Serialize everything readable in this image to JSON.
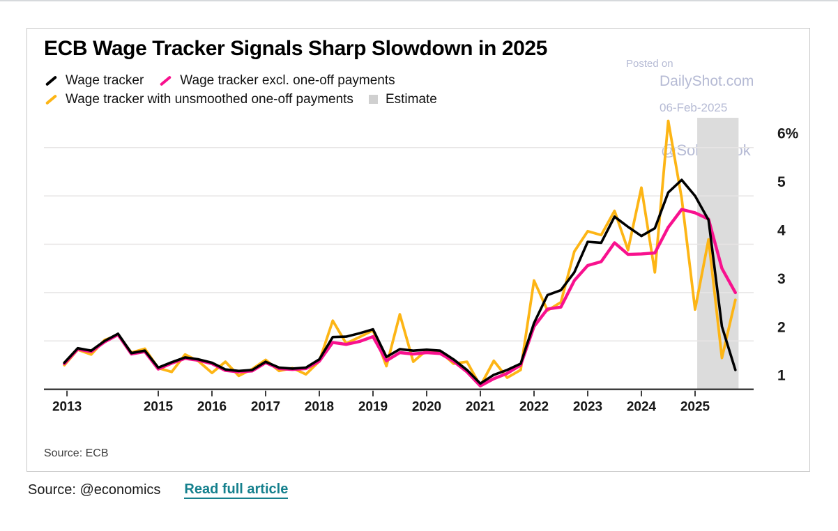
{
  "card": {
    "title": "ECB Wage Tracker Signals Sharp Slowdown in 2025",
    "source_note": "Source: ECB",
    "watermark": {
      "line1": "Posted on",
      "line2": "DailyShot.com",
      "line3": "06-Feb-2025",
      "line4": "@SoberLook"
    }
  },
  "legend": {
    "items": [
      {
        "label": "Wage tracker",
        "color": "#000000",
        "marker": "slash"
      },
      {
        "label": "Wage tracker excl. one-off payments",
        "color": "#f8118e",
        "marker": "slash"
      },
      {
        "label": "Wage tracker with unsmoothed one-off payments",
        "color": "#fdb515",
        "marker": "slash"
      },
      {
        "label": "Estimate",
        "color": "#d0d0d0",
        "marker": "square"
      }
    ]
  },
  "footer": {
    "source_label": "Source: @economics",
    "link_label": "Read full article"
  },
  "chart_data": {
    "type": "line",
    "title": "ECB Wage Tracker Signals Sharp Slowdown in 2025",
    "unit": "percent",
    "ylim": [
      1,
      6.6
    ],
    "grid": true,
    "legend_position": "top-left",
    "x": [
      2013.25,
      2013.5,
      2013.75,
      2014.0,
      2014.25,
      2014.5,
      2014.75,
      2015.0,
      2015.25,
      2015.5,
      2015.75,
      2016.0,
      2016.25,
      2016.5,
      2016.75,
      2017.0,
      2017.25,
      2017.5,
      2017.75,
      2018.0,
      2018.25,
      2018.5,
      2018.75,
      2019.0,
      2019.25,
      2019.5,
      2019.75,
      2020.0,
      2020.25,
      2020.5,
      2020.75,
      2021.0,
      2021.25,
      2021.5,
      2021.75,
      2022.0,
      2022.25,
      2022.5,
      2022.75,
      2023.0,
      2023.25,
      2023.5,
      2023.75,
      2024.0,
      2024.25,
      2024.5,
      2024.75,
      2025.0,
      2025.25,
      2025.5,
      2025.75
    ],
    "series": [
      {
        "name": "Wage tracker",
        "color": "#000000",
        "width": 3.6,
        "z": 3,
        "values": [
          1.55,
          1.85,
          1.8,
          2.0,
          2.15,
          1.75,
          1.8,
          1.45,
          1.56,
          1.66,
          1.62,
          1.55,
          1.41,
          1.38,
          1.4,
          1.57,
          1.45,
          1.43,
          1.45,
          1.62,
          2.08,
          2.09,
          2.16,
          2.24,
          1.67,
          1.83,
          1.8,
          1.82,
          1.8,
          1.62,
          1.4,
          1.12,
          1.3,
          1.4,
          1.53,
          2.37,
          2.95,
          3.05,
          3.42,
          4.05,
          4.03,
          4.57,
          4.36,
          4.17,
          4.33,
          5.07,
          5.33,
          5.0,
          4.5,
          2.3,
          1.4
        ]
      },
      {
        "name": "Wage tracker excl. one-off payments",
        "color": "#f8118e",
        "width": 4.4,
        "z": 2,
        "values": [
          1.53,
          1.83,
          1.78,
          1.98,
          2.13,
          1.73,
          1.78,
          1.42,
          1.54,
          1.64,
          1.6,
          1.53,
          1.39,
          1.36,
          1.38,
          1.55,
          1.43,
          1.41,
          1.43,
          1.58,
          1.97,
          1.93,
          1.99,
          2.09,
          1.59,
          1.76,
          1.73,
          1.76,
          1.74,
          1.58,
          1.36,
          1.07,
          1.22,
          1.33,
          1.5,
          2.3,
          2.66,
          2.7,
          3.25,
          3.56,
          3.64,
          4.03,
          3.79,
          3.8,
          3.82,
          4.35,
          4.72,
          4.65,
          4.52,
          3.5,
          3.0
        ]
      },
      {
        "name": "Wage tracker with unsmoothed one-off payments",
        "color": "#fdb515",
        "width": 3.8,
        "z": 1,
        "values": [
          1.5,
          1.82,
          1.72,
          2.02,
          2.12,
          1.76,
          1.84,
          1.44,
          1.36,
          1.72,
          1.58,
          1.34,
          1.57,
          1.28,
          1.42,
          1.61,
          1.38,
          1.44,
          1.31,
          1.58,
          2.42,
          1.95,
          2.08,
          2.22,
          1.48,
          2.55,
          1.57,
          1.81,
          1.78,
          1.53,
          1.57,
          1.07,
          1.59,
          1.24,
          1.4,
          3.25,
          2.63,
          2.8,
          3.85,
          4.27,
          4.19,
          4.69,
          3.88,
          5.17,
          3.42,
          6.55,
          4.95,
          2.65,
          4.1,
          1.65,
          2.85
        ]
      }
    ],
    "yticks": [
      {
        "v": 6,
        "label": "6%"
      },
      {
        "v": 5,
        "label": "5"
      },
      {
        "v": 4,
        "label": "4"
      },
      {
        "v": 3,
        "label": "3"
      },
      {
        "v": 2,
        "label": "2"
      },
      {
        "v": 1,
        "label": "1"
      }
    ],
    "xticks": [
      {
        "t": 2013.3,
        "label": "2013"
      },
      {
        "t": 2015,
        "label": "2015"
      },
      {
        "t": 2016,
        "label": "2016"
      },
      {
        "t": 2017,
        "label": "2017"
      },
      {
        "t": 2018,
        "label": "2018"
      },
      {
        "t": 2019,
        "label": "2019"
      },
      {
        "t": 2020,
        "label": "2020"
      },
      {
        "t": 2021,
        "label": "2021"
      },
      {
        "t": 2022,
        "label": "2022"
      },
      {
        "t": 2023,
        "label": "2023"
      },
      {
        "t": 2024,
        "label": "2024"
      },
      {
        "t": 2025,
        "label": "2025"
      }
    ],
    "estimate_band": {
      "from": 2025.04,
      "to": 2025.81,
      "label": "Estimate"
    },
    "colors": {
      "band": "#dcdcdc",
      "grid": "#e7e5e5",
      "axis": "#3d3d3d",
      "tick_label": "#161616"
    }
  }
}
